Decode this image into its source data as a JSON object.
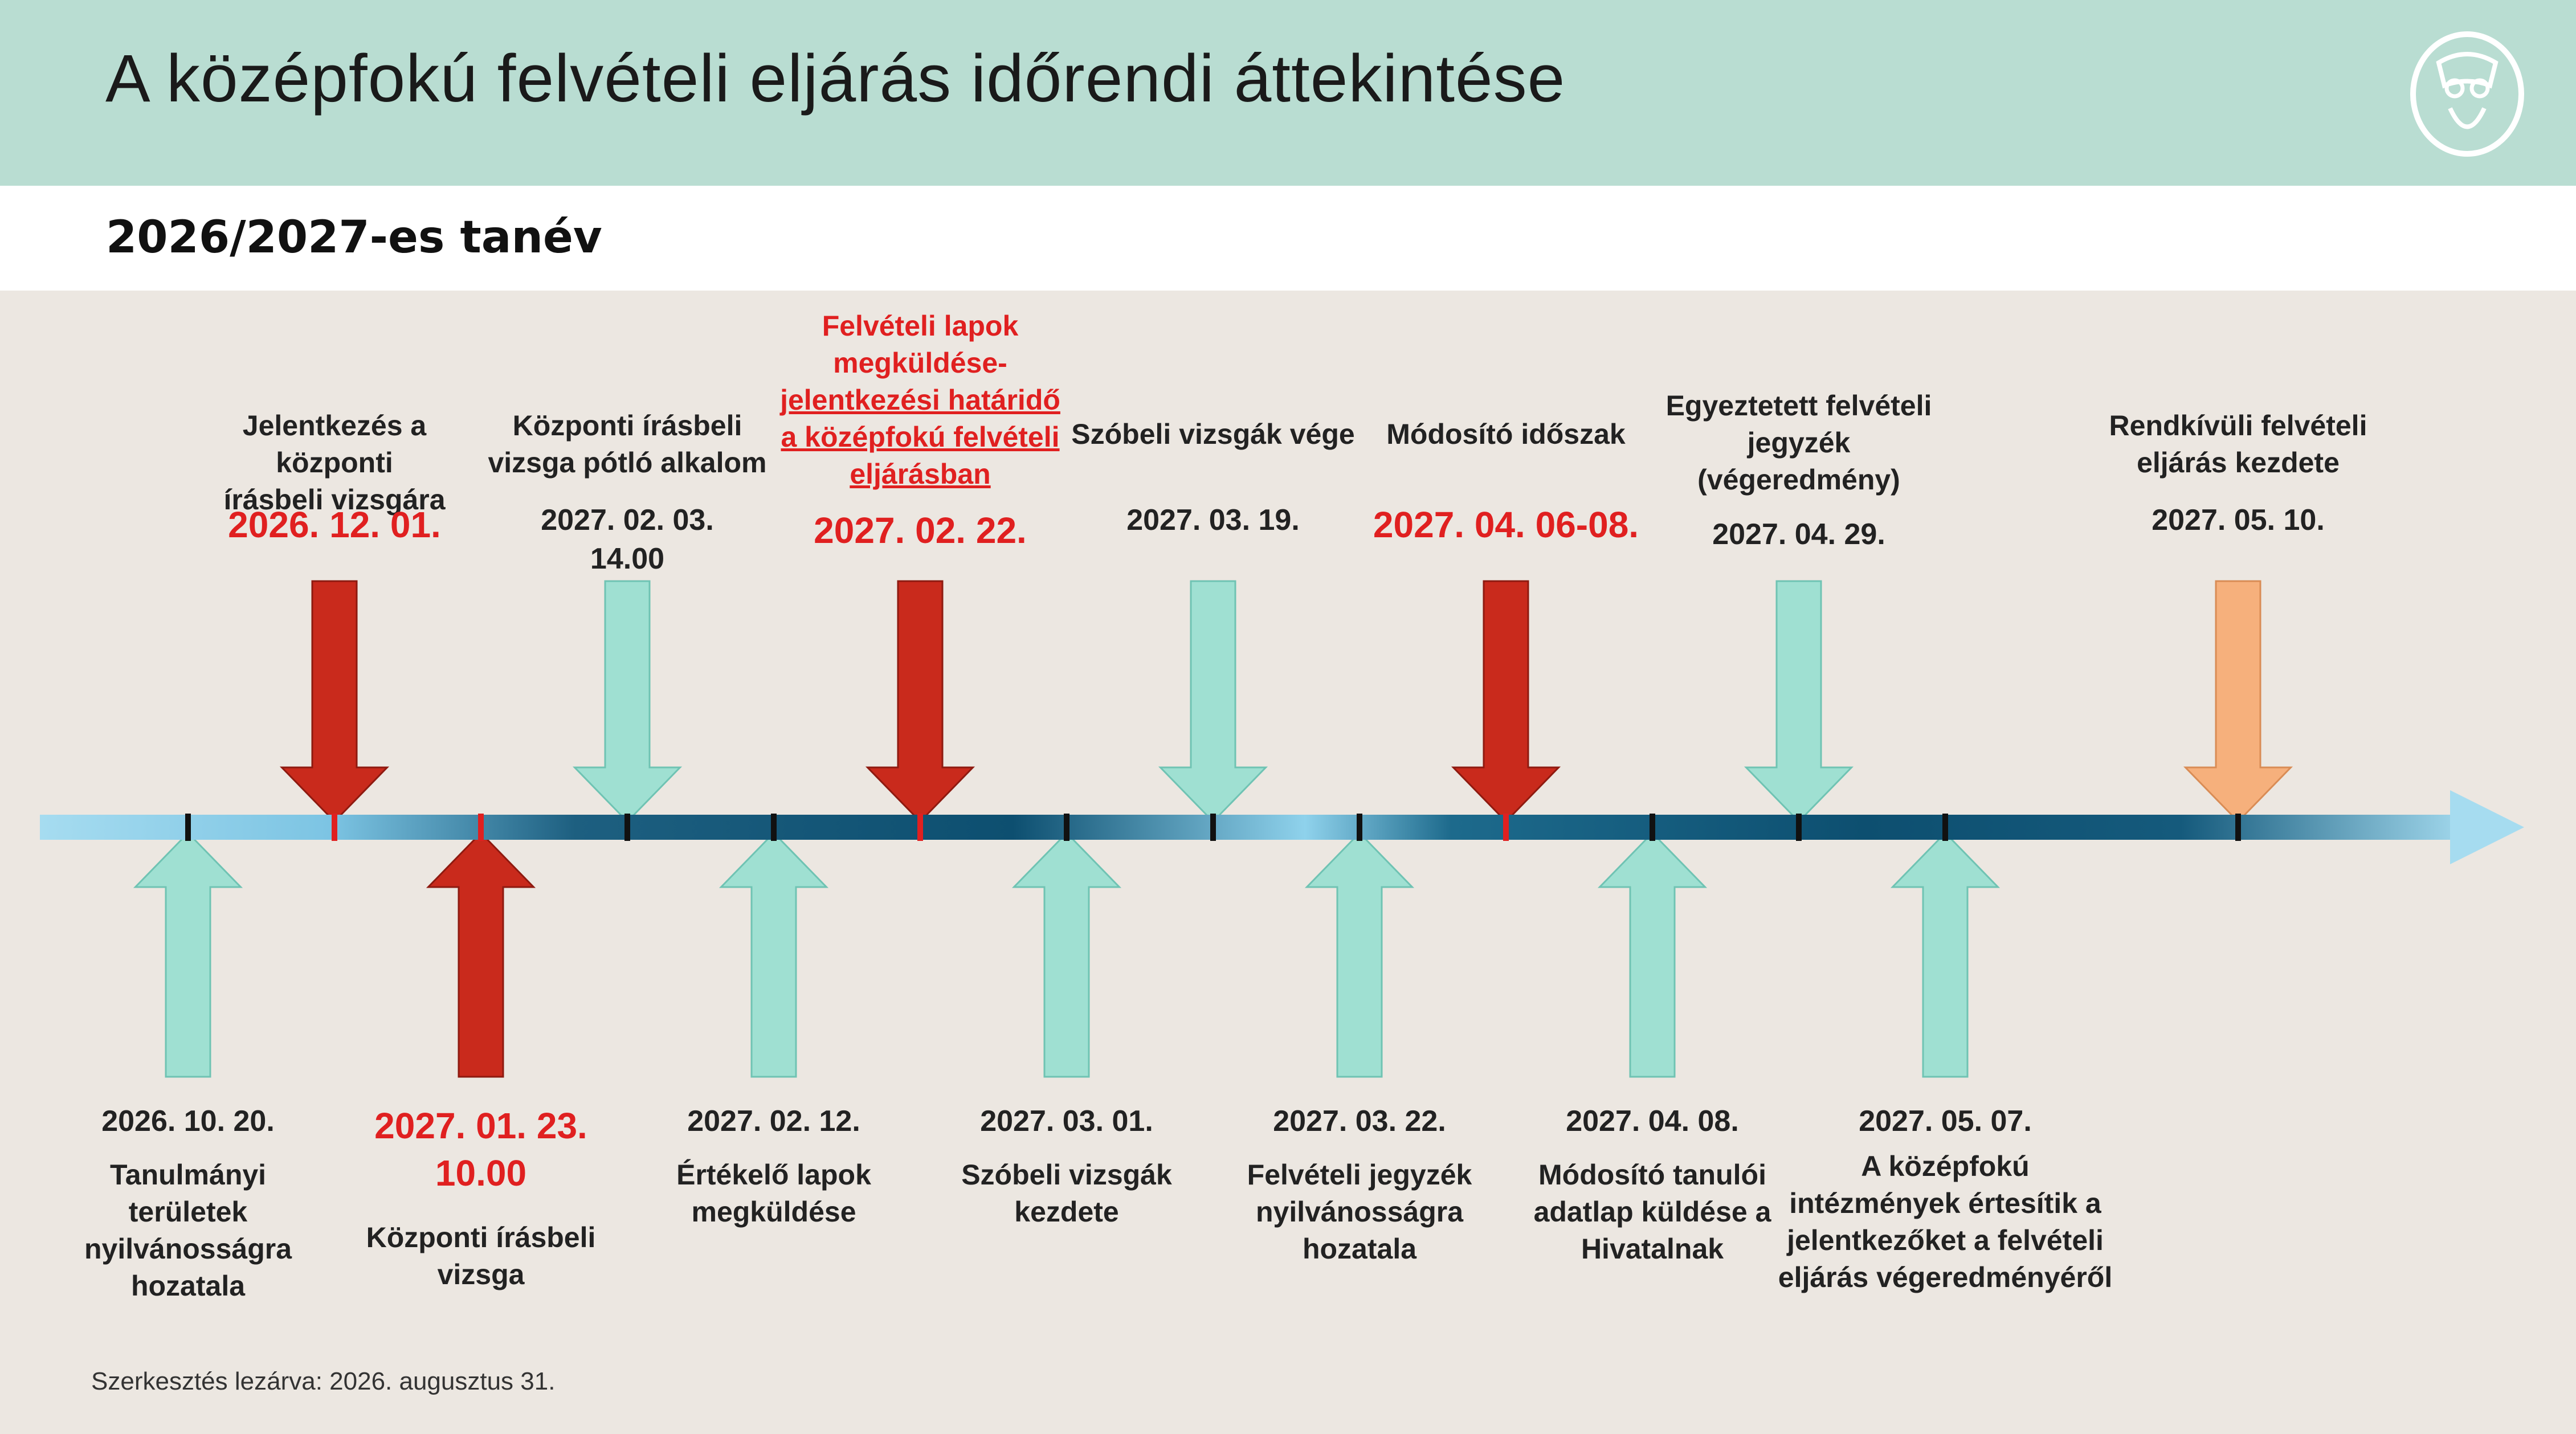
{
  "header": {
    "title": "A középfokú felvételi eljárás időrendi áttekintése",
    "subtitle": "2026/2027-es tanév"
  },
  "colors": {
    "header_bg": "#b9ddd2",
    "content_bg": "#ece7e1",
    "accent_red": "#e02020",
    "arrow_red": "#c92a1c",
    "arrow_teal": "#9fe0d2",
    "arrow_orange": "#f6b07c",
    "timeline_light": "#8fd2ec",
    "timeline_dark": "#0d4f70"
  },
  "timeline": {
    "top": [
      {
        "description": [
          "Jelentkezés a központi",
          "írásbeli vizsgára"
        ],
        "date": [
          "2026. 12. 01."
        ],
        "arrow": "red",
        "highlight": true
      },
      {
        "description": [
          "Központi írásbeli",
          "vizsga pótló alkalom"
        ],
        "date": [
          "2027. 02. 03.",
          "14.00"
        ],
        "arrow": "teal",
        "highlight": false
      },
      {
        "description": [
          "Felvételi lapok",
          "megküldése-",
          "jelentkezési határidő",
          "a középfokú felvételi",
          "eljárásban"
        ],
        "date": [
          "2027. 02. 22."
        ],
        "arrow": "red",
        "highlight": true
      },
      {
        "description": [
          "Szóbeli vizsgák vége"
        ],
        "date": [
          "2027. 03. 19."
        ],
        "arrow": "teal",
        "highlight": false
      },
      {
        "description": [
          "Módosító időszak"
        ],
        "date": [
          "2027. 04. 06-08."
        ],
        "arrow": "red",
        "highlight": true
      },
      {
        "description": [
          "Egyeztetett felvételi",
          "jegyzék",
          "(végeredmény)"
        ],
        "date": [
          "2027. 04. 29."
        ],
        "arrow": "teal",
        "highlight": false
      },
      {
        "description": [
          "Rendkívüli felvételi",
          "eljárás kezdete"
        ],
        "date": [
          "2027. 05. 10."
        ],
        "arrow": "orange",
        "highlight": false
      }
    ],
    "bottom": [
      {
        "date": [
          "2026. 10. 20."
        ],
        "description": [
          "Tanulmányi",
          "területek",
          "nyilvánosságra",
          "hozatala"
        ],
        "arrow": "teal",
        "highlight": false
      },
      {
        "date": [
          "2027. 01. 23.",
          "10.00"
        ],
        "description": [
          "Központi írásbeli vizsga"
        ],
        "arrow": "red",
        "highlight": true
      },
      {
        "date": [
          "2027. 02. 12."
        ],
        "description": [
          "Értékelő lapok",
          "megküldése"
        ],
        "arrow": "teal",
        "highlight": false
      },
      {
        "date": [
          "2027. 03. 01."
        ],
        "description": [
          "Szóbeli vizsgák",
          "kezdete"
        ],
        "arrow": "teal",
        "highlight": false
      },
      {
        "date": [
          "2027. 03. 22."
        ],
        "description": [
          "Felvételi jegyzék",
          "nyilvánosságra",
          "hozatala"
        ],
        "arrow": "teal",
        "highlight": false
      },
      {
        "date": [
          "2027. 04. 08."
        ],
        "description": [
          "Módosító tanulói",
          "adatlap küldése a",
          "Hivatalnak"
        ],
        "arrow": "teal",
        "highlight": false
      },
      {
        "date": [
          "2027. 05. 07."
        ],
        "description": [
          "A középfokú",
          "intézmények értesítik a",
          "jelentkezőket a felvételi",
          "eljárás végeredményéről"
        ],
        "arrow": "teal",
        "highlight": false
      }
    ]
  },
  "footer": {
    "note": "Szerkesztés lezárva: 2026. augusztus 31."
  }
}
